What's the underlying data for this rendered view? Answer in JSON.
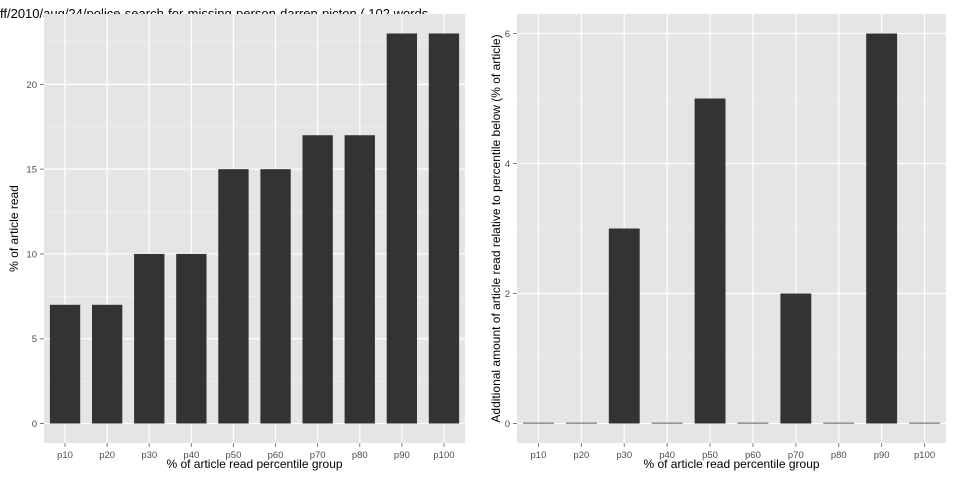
{
  "chart_data": [
    {
      "type": "bar",
      "title": "ff/2010/aug/24/police-search-for-missing-person-darren-picton ( 102 words",
      "xlabel": "% of article read percentile group",
      "ylabel": "% of article read",
      "categories": [
        "p10",
        "p20",
        "p30",
        "p40",
        "p50",
        "p60",
        "p70",
        "p80",
        "p90",
        "p100"
      ],
      "values": [
        7,
        7,
        10,
        10,
        15,
        15,
        17,
        17,
        23,
        23
      ],
      "yticks": [
        0,
        5,
        10,
        15,
        20
      ],
      "ylim": [
        -1.15,
        24.15
      ],
      "grid": true,
      "colors": {
        "panel": "#e5e5e5",
        "grid": "#ffffff",
        "bar": "#333333",
        "tick_label": "#4d4d4d"
      }
    },
    {
      "type": "bar",
      "title": "",
      "xlabel": "% of article read percentile group",
      "ylabel": "Additional amount of article read relative to percentile below (% of article)",
      "categories": [
        "p10",
        "p20",
        "p30",
        "p40",
        "p50",
        "p60",
        "p70",
        "p80",
        "p90",
        "p100"
      ],
      "values": [
        0,
        0,
        3,
        0,
        5,
        0,
        2,
        0,
        6,
        0
      ],
      "yticks": [
        0,
        2,
        4,
        6
      ],
      "ylim": [
        -0.3,
        6.3
      ],
      "grid": true,
      "colors": {
        "panel": "#e5e5e5",
        "grid": "#ffffff",
        "bar": "#333333",
        "tick_label": "#4d4d4d"
      }
    }
  ]
}
